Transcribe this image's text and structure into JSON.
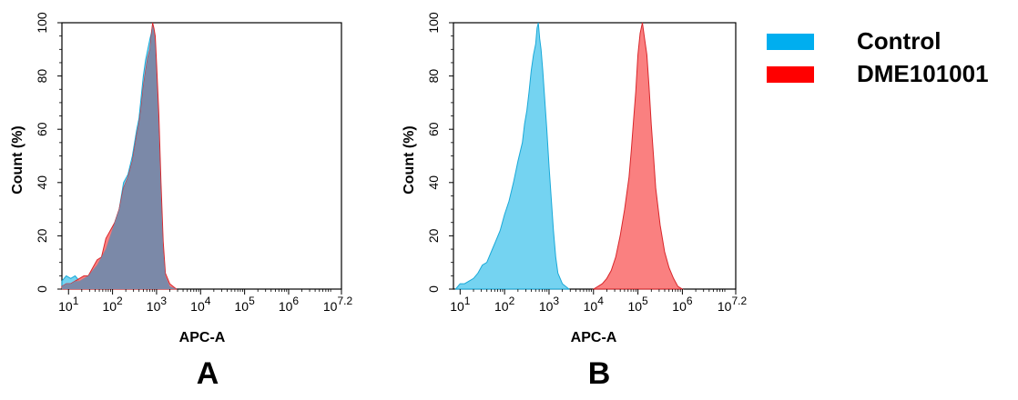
{
  "colors": {
    "control_fill": "#5ccbee",
    "control_stroke": "#1aa9d8",
    "sample_fill": "#f96a6a",
    "sample_stroke": "#d9262b",
    "overlap_fill": "#7b89a8",
    "legend_control": "#00aeef",
    "legend_sample": "#ff0000"
  },
  "legend": {
    "items": [
      {
        "label": "Control",
        "color": "#00aeef"
      },
      {
        "label": "DME101001",
        "color": "#ff0000"
      }
    ]
  },
  "chart_data": [
    {
      "type": "area",
      "panel_label": "A",
      "xlabel": "APC-A",
      "ylabel": "Count  (%)",
      "x_scale": "log10",
      "xlim": [
        0.85,
        7.2
      ],
      "ylim": [
        0,
        100
      ],
      "x_ticks": [
        {
          "base": "10",
          "exp": "1",
          "value": 1
        },
        {
          "base": "10",
          "exp": "2",
          "value": 2
        },
        {
          "base": "10",
          "exp": "3",
          "value": 3
        },
        {
          "base": "10",
          "exp": "4",
          "value": 4
        },
        {
          "base": "10",
          "exp": "5",
          "value": 5
        },
        {
          "base": "10",
          "exp": "6",
          "value": 6
        },
        {
          "base": "10",
          "exp": "7.2",
          "value": 7.2
        }
      ],
      "y_ticks": [
        "0",
        "20",
        "40",
        "60",
        "80",
        "100"
      ],
      "overlapping": true,
      "series": [
        {
          "name": "Control",
          "x": [
            0.85,
            0.95,
            1.05,
            1.15,
            1.25,
            1.35,
            1.45,
            1.55,
            1.65,
            1.75,
            1.85,
            1.95,
            2.05,
            2.15,
            2.25,
            2.35,
            2.45,
            2.55,
            2.6,
            2.65,
            2.7,
            2.75,
            2.8,
            2.85,
            2.88,
            2.91,
            2.94,
            2.97,
            3.0,
            3.05,
            3.1,
            3.15,
            3.2,
            3.3,
            3.45
          ],
          "y": [
            3,
            5,
            4,
            5,
            3,
            4,
            5,
            7,
            9,
            12,
            15,
            20,
            25,
            30,
            40,
            43,
            50,
            60,
            64,
            72,
            80,
            86,
            90,
            94,
            96,
            99,
            97,
            92,
            80,
            60,
            35,
            15,
            5,
            1,
            0
          ]
        },
        {
          "name": "DME101001",
          "x": [
            0.85,
            0.95,
            1.05,
            1.15,
            1.25,
            1.35,
            1.45,
            1.55,
            1.65,
            1.75,
            1.85,
            1.95,
            2.05,
            2.15,
            2.25,
            2.35,
            2.45,
            2.55,
            2.6,
            2.65,
            2.7,
            2.75,
            2.8,
            2.85,
            2.88,
            2.91,
            2.94,
            2.97,
            3.0,
            3.05,
            3.1,
            3.15,
            3.2,
            3.3,
            3.45
          ],
          "y": [
            1,
            2,
            2,
            3,
            4,
            5,
            5,
            8,
            11,
            12,
            19,
            22,
            25,
            30,
            38,
            42,
            48,
            58,
            62,
            68,
            76,
            82,
            87,
            90,
            95,
            100,
            98,
            95,
            85,
            66,
            40,
            18,
            6,
            2,
            0
          ]
        }
      ]
    },
    {
      "type": "area",
      "panel_label": "B",
      "xlabel": "APC-A",
      "ylabel": "Count  (%)",
      "x_scale": "log10",
      "xlim": [
        0.85,
        7.2
      ],
      "ylim": [
        0,
        100
      ],
      "x_ticks": [
        {
          "base": "10",
          "exp": "1",
          "value": 1
        },
        {
          "base": "10",
          "exp": "2",
          "value": 2
        },
        {
          "base": "10",
          "exp": "3",
          "value": 3
        },
        {
          "base": "10",
          "exp": "4",
          "value": 4
        },
        {
          "base": "10",
          "exp": "5",
          "value": 5
        },
        {
          "base": "10",
          "exp": "6",
          "value": 6
        },
        {
          "base": "10",
          "exp": "7.2",
          "value": 7.2
        }
      ],
      "y_ticks": [
        "0",
        "20",
        "40",
        "60",
        "80",
        "100"
      ],
      "overlapping": false,
      "series": [
        {
          "name": "Control",
          "x": [
            0.9,
            1.0,
            1.1,
            1.2,
            1.3,
            1.4,
            1.5,
            1.6,
            1.7,
            1.8,
            1.9,
            2.0,
            2.1,
            2.2,
            2.3,
            2.4,
            2.45,
            2.5,
            2.55,
            2.6,
            2.65,
            2.7,
            2.73,
            2.76,
            2.79,
            2.82,
            2.86,
            2.9,
            2.95,
            3.0,
            3.05,
            3.1,
            3.15,
            3.2,
            3.3,
            3.45
          ],
          "y": [
            0,
            2,
            2,
            3,
            4,
            6,
            9,
            10,
            14,
            18,
            22,
            28,
            33,
            40,
            48,
            55,
            62,
            67,
            74,
            82,
            88,
            92,
            98,
            100,
            94,
            90,
            82,
            72,
            60,
            46,
            34,
            22,
            12,
            6,
            2,
            0
          ]
        },
        {
          "name": "DME101001",
          "x": [
            4.0,
            4.1,
            4.2,
            4.3,
            4.4,
            4.5,
            4.6,
            4.7,
            4.8,
            4.85,
            4.9,
            4.95,
            5.0,
            5.05,
            5.1,
            5.15,
            5.2,
            5.25,
            5.3,
            5.35,
            5.4,
            5.5,
            5.6,
            5.7,
            5.8,
            5.9,
            6.0
          ],
          "y": [
            0,
            1,
            2,
            4,
            7,
            12,
            20,
            30,
            42,
            52,
            63,
            74,
            88,
            96,
            100,
            94,
            88,
            76,
            62,
            50,
            38,
            24,
            14,
            8,
            4,
            1,
            0
          ]
        }
      ]
    }
  ]
}
